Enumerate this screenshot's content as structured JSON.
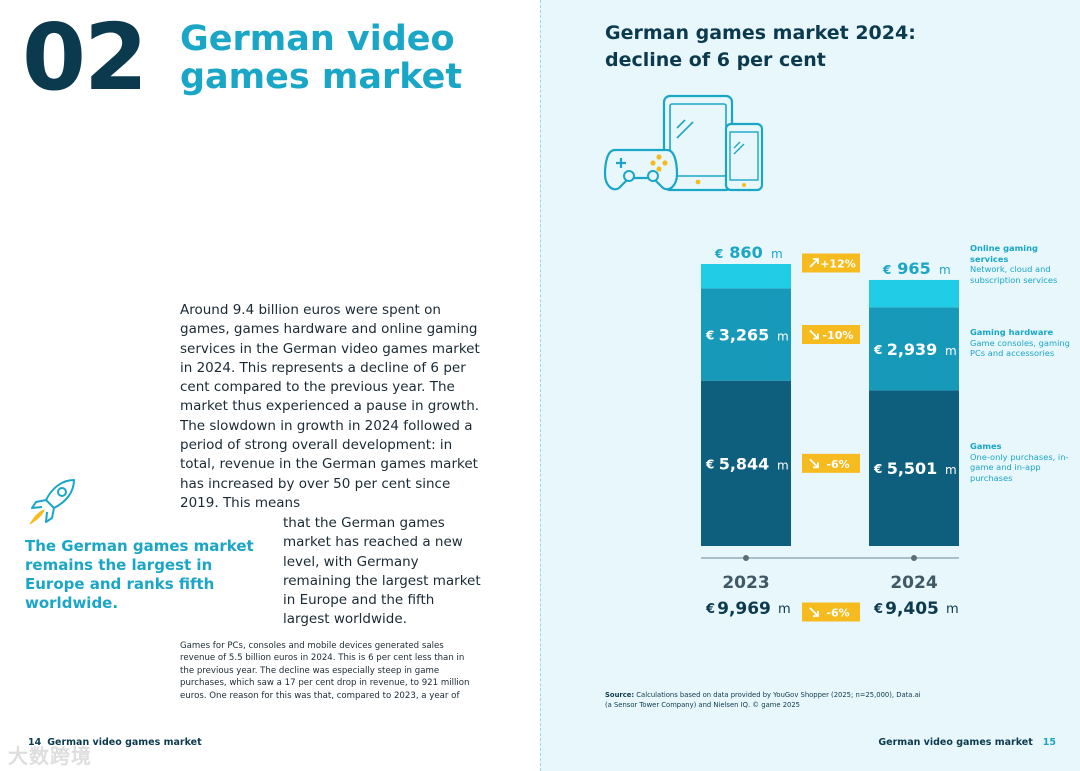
{
  "left": {
    "chapter_number": "02",
    "chapter_title": "German video games market",
    "intro": "Around 9.4 billion euros were spent on games, games hardware and online gaming services in the German video games market in 2024. This represents a decline of 6 per cent compared to the previous year. The market thus experienced a pause in growth. The slowdown in growth in 2024 followed a period of strong overall development: in total, revenue in the German games market has increased by over 50 per cent since 2019. This means",
    "intro_cont": "that the German games market has reached a new level, with Germany remaining the largest market in Europe and the fifth largest worldwide.",
    "callout": "The German games market remains the largest in Europe and ranks fifth worldwide.",
    "small_text": "Games for PCs, consoles and mobile devices generated sales revenue of 5.5 billion euros in 2024. This is 6 per cent less than in the previous year. The decline was especially steep in game purchases, which saw a 17 per cent drop in revenue, to 921 million euros. One reason for this was that, compared to 2023, a year of",
    "footer_page": "14",
    "footer_title": "German video games market"
  },
  "right": {
    "footer_title": "German video games market",
    "footer_page": "15",
    "source_label": "Source:",
    "source_text": "Calculations based on data provided by YouGov Shopper (2025; n=25,000), Data.ai (a Sensor Tower Company) and Nielsen IQ. © game 2025"
  },
  "watermark": "大数跨境",
  "colors": {
    "dark": "#0b3a4f",
    "accent": "#1aa6c7",
    "games": "#0e5f7d",
    "hardware": "#1799ba",
    "online": "#21cde6",
    "badge": "#f6bb1f",
    "bg_right": "#e8f7fb"
  },
  "chart_data": {
    "type": "bar",
    "title": "German games market 2024: decline of 6 per cent",
    "categories": [
      "2023",
      "2024"
    ],
    "unit": "m",
    "currency": "€",
    "stacked": true,
    "series": [
      {
        "name": "Games",
        "description": "One-only purchases, in-game and in-app purchases",
        "values": [
          5844,
          5501
        ],
        "labels": [
          "5,844",
          "5,501"
        ],
        "change": "-6%",
        "color": "#0e5f7d"
      },
      {
        "name": "Gaming hardware",
        "description": "Game consoles, gaming PCs and accessories",
        "values": [
          3265,
          2939
        ],
        "labels": [
          "3,265",
          "2,939"
        ],
        "change": "-10%",
        "color": "#1799ba"
      },
      {
        "name": "Online gaming services",
        "description": "Network, cloud and subscription services",
        "values": [
          860,
          965
        ],
        "labels": [
          "860",
          "965"
        ],
        "change": "+12%",
        "color": "#21cde6"
      }
    ],
    "totals": {
      "values": [
        9969,
        9405
      ],
      "labels": [
        "9,969",
        "9,405"
      ],
      "change": "-6%"
    },
    "legend": "right"
  }
}
